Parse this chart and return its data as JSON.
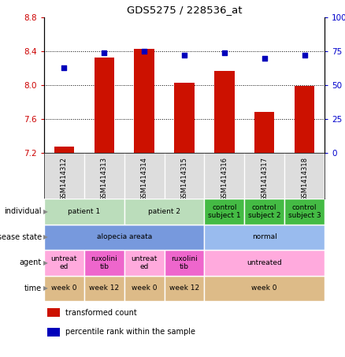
{
  "title": "GDS5275 / 228536_at",
  "samples": [
    "GSM1414312",
    "GSM1414313",
    "GSM1414314",
    "GSM1414315",
    "GSM1414316",
    "GSM1414317",
    "GSM1414318"
  ],
  "red_values": [
    7.27,
    8.33,
    8.43,
    8.03,
    8.17,
    7.68,
    7.99
  ],
  "blue_values": [
    63,
    74,
    75,
    72,
    74,
    70,
    72
  ],
  "ylim_left": [
    7.2,
    8.8
  ],
  "ylim_right": [
    0,
    100
  ],
  "yticks_left": [
    7.2,
    7.6,
    8.0,
    8.4,
    8.8
  ],
  "yticks_right": [
    0,
    25,
    50,
    75,
    100
  ],
  "bar_color": "#cc1100",
  "dot_color": "#0000bb",
  "annotation_rows": [
    {
      "label": "individual",
      "cells": [
        {
          "text": "patient 1",
          "colspan": 2,
          "color": "#bbddbb"
        },
        {
          "text": "patient 2",
          "colspan": 2,
          "color": "#bbddbb"
        },
        {
          "text": "control\nsubject 1",
          "colspan": 1,
          "color": "#44bb44"
        },
        {
          "text": "control\nsubject 2",
          "colspan": 1,
          "color": "#44bb44"
        },
        {
          "text": "control\nsubject 3",
          "colspan": 1,
          "color": "#44bb44"
        }
      ]
    },
    {
      "label": "disease state",
      "cells": [
        {
          "text": "alopecia areata",
          "colspan": 4,
          "color": "#7799dd"
        },
        {
          "text": "normal",
          "colspan": 3,
          "color": "#99bbee"
        }
      ]
    },
    {
      "label": "agent",
      "cells": [
        {
          "text": "untreat\ned",
          "colspan": 1,
          "color": "#ffaadd"
        },
        {
          "text": "ruxolini\ntib",
          "colspan": 1,
          "color": "#ee66cc"
        },
        {
          "text": "untreat\ned",
          "colspan": 1,
          "color": "#ffaadd"
        },
        {
          "text": "ruxolini\ntib",
          "colspan": 1,
          "color": "#ee66cc"
        },
        {
          "text": "untreated",
          "colspan": 3,
          "color": "#ffaadd"
        }
      ]
    },
    {
      "label": "time",
      "cells": [
        {
          "text": "week 0",
          "colspan": 1,
          "color": "#ddbb88"
        },
        {
          "text": "week 12",
          "colspan": 1,
          "color": "#ddbb88"
        },
        {
          "text": "week 0",
          "colspan": 1,
          "color": "#ddbb88"
        },
        {
          "text": "week 12",
          "colspan": 1,
          "color": "#ddbb88"
        },
        {
          "text": "week 0",
          "colspan": 3,
          "color": "#ddbb88"
        }
      ]
    }
  ],
  "row_labels": [
    "individual",
    "disease state",
    "agent",
    "time"
  ],
  "legend": [
    {
      "color": "#cc1100",
      "label": "transformed count"
    },
    {
      "color": "#0000bb",
      "label": "percentile rank within the sample"
    }
  ],
  "tick_label_color_left": "#cc0000",
  "tick_label_color_right": "#0000cc"
}
